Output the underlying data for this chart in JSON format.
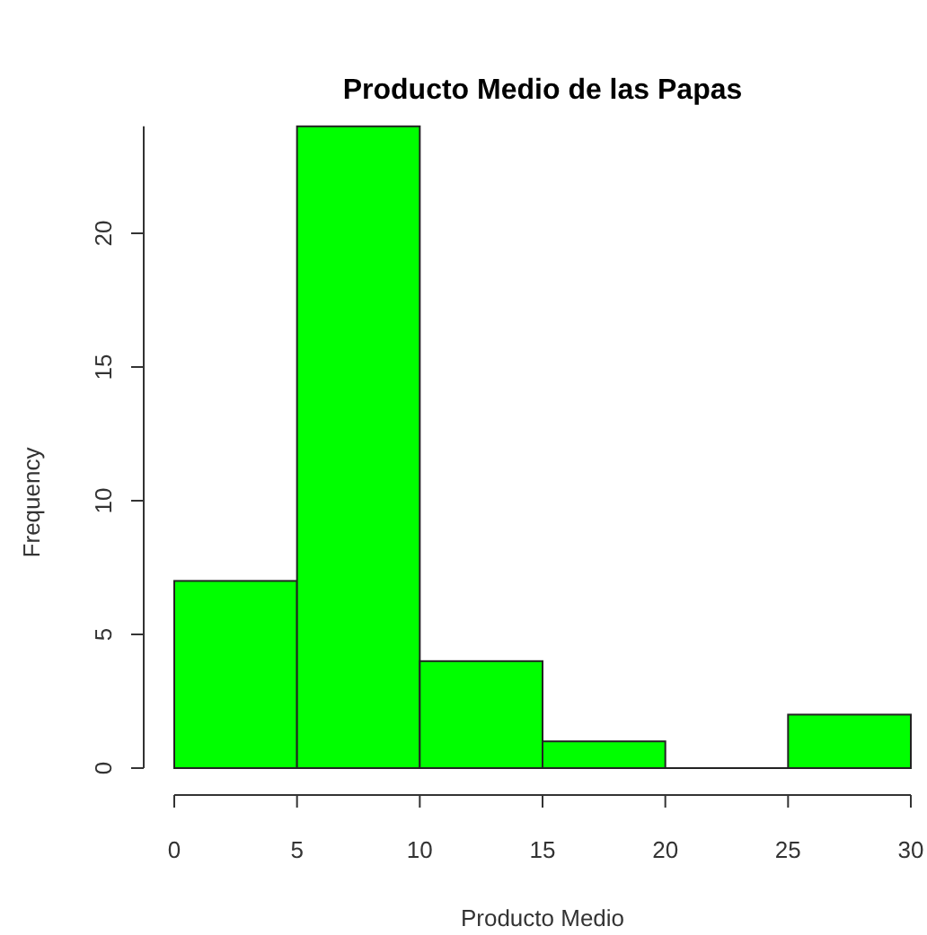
{
  "chart_data": {
    "type": "histogram",
    "title": "Producto Medio de las Papas",
    "xlabel": "Producto Medio",
    "ylabel": "Frequency",
    "bins": [
      0,
      5,
      10,
      15,
      20,
      25,
      30
    ],
    "values": [
      7,
      24,
      4,
      1,
      0,
      2
    ],
    "color": "#00ff00",
    "xlim": [
      0,
      30
    ],
    "ylim": [
      0,
      24
    ],
    "xticks": [
      0,
      5,
      10,
      15,
      20,
      25,
      30
    ],
    "yticks": [
      0,
      5,
      10,
      15,
      20
    ]
  }
}
